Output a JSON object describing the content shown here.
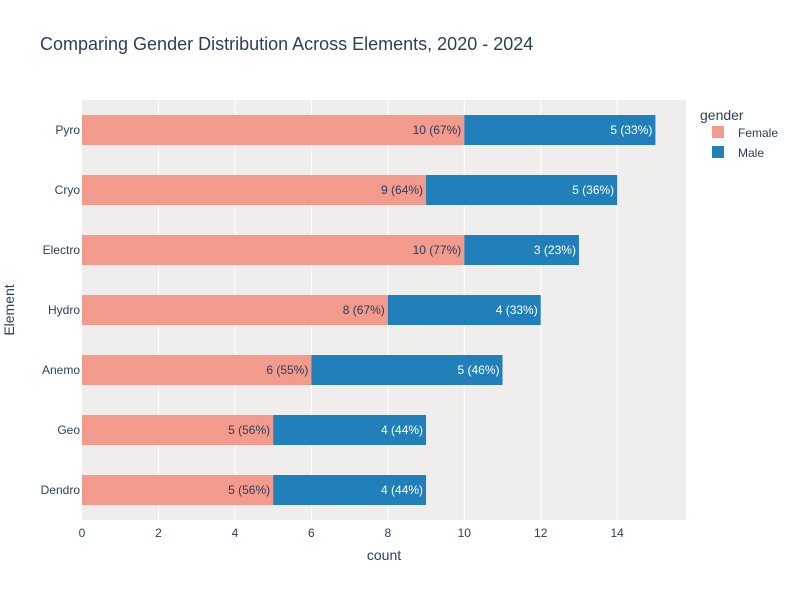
{
  "chart_data": {
    "type": "bar",
    "orientation": "horizontal",
    "barmode": "stack",
    "title": "Comparing Gender Distribution Across Elements, 2020 - 2024",
    "xlabel": "count",
    "ylabel": "Element",
    "xlim": [
      0,
      15.8
    ],
    "x_ticks": [
      "0",
      "2",
      "4",
      "6",
      "8",
      "10",
      "12",
      "14"
    ],
    "grid": true,
    "legend": {
      "title": "gender",
      "placement": "top-right"
    },
    "categories": [
      "Pyro",
      "Cryo",
      "Electro",
      "Hydro",
      "Anemo",
      "Geo",
      "Dendro"
    ],
    "series": [
      {
        "name": "Female",
        "color": "#f29a8c",
        "label_color": "#2a3f5f",
        "values": [
          10,
          9,
          10,
          8,
          6,
          5,
          5
        ],
        "labels": [
          "10 (67%)",
          "9 (64%)",
          "10 (77%)",
          "8 (67%)",
          "6 (55%)",
          "5 (56%)",
          "5 (56%)"
        ]
      },
      {
        "name": "Male",
        "color": "#2180b9",
        "label_color": "#ffffff",
        "values": [
          5,
          5,
          3,
          4,
          5,
          4,
          4
        ],
        "labels": [
          "5 (33%)",
          "5 (36%)",
          "3 (23%)",
          "4 (33%)",
          "5 (46%)",
          "4 (44%)",
          "4 (44%)"
        ]
      }
    ],
    "colors": {
      "plot_bg": "#f0eeed",
      "grid": "#ffffff",
      "text": "#2a3f5f"
    }
  }
}
